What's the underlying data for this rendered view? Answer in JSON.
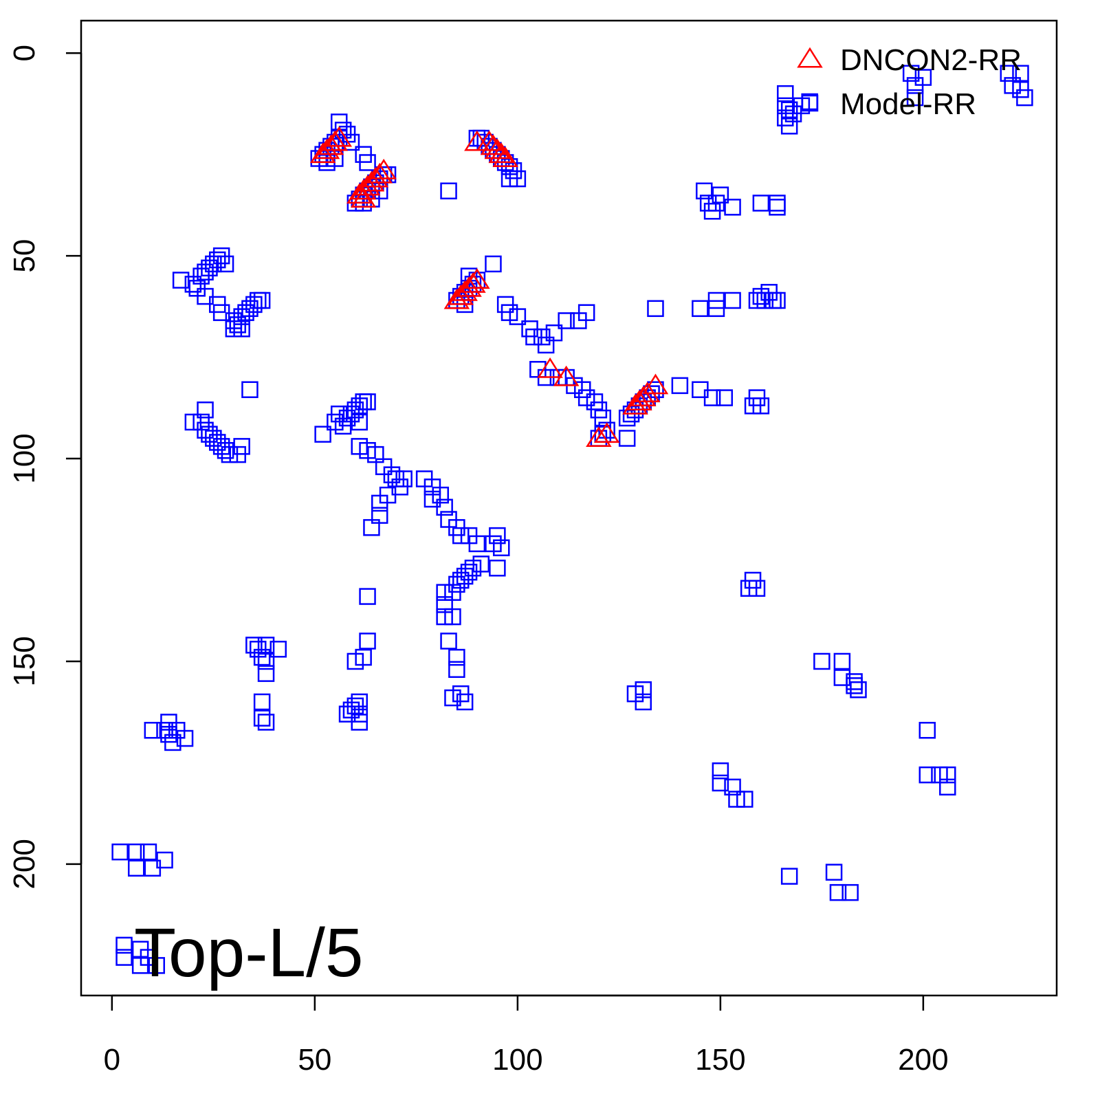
{
  "chart_data": {
    "type": "scatter",
    "annotation": "Top-L/5",
    "xlim": [
      -7.6,
      232.9
    ],
    "ylim": [
      232.4,
      -8
    ],
    "xticks": [
      0,
      50,
      100,
      150,
      200
    ],
    "yticks": [
      0,
      50,
      100,
      150,
      200
    ],
    "legend": "top-right",
    "series": [
      {
        "name": "DNCON2-RR",
        "color": "#ff0000",
        "marker": "triangle",
        "x": [
          52,
          53,
          54,
          55,
          56,
          61,
          62,
          63,
          64,
          65,
          66,
          67,
          62,
          90,
          93,
          94,
          95,
          96,
          97,
          85,
          86,
          87,
          88,
          89,
          90,
          108,
          112,
          120,
          122,
          129,
          130,
          131,
          132,
          134
        ],
        "y": [
          25,
          24,
          23,
          22,
          21,
          35,
          34,
          33,
          32,
          31,
          30,
          29,
          36,
          22,
          22,
          23,
          24,
          25,
          26,
          61,
          60,
          59,
          58,
          57,
          56,
          78,
          80,
          95,
          94,
          87,
          86,
          85,
          84,
          82
        ]
      },
      {
        "name": "Model-RR",
        "color": "#0000ff",
        "marker": "square",
        "x": [
          52,
          53,
          54,
          55,
          56,
          56,
          57,
          58,
          51,
          53,
          55,
          59,
          62,
          63,
          60,
          61,
          62,
          63,
          64,
          65,
          66,
          67,
          68,
          62,
          64,
          66,
          83,
          90,
          91,
          92,
          93,
          94,
          95,
          96,
          97,
          98,
          99,
          98,
          100,
          166,
          166,
          167,
          168,
          170,
          172,
          166,
          167,
          197,
          198,
          198,
          200,
          221,
          222,
          224,
          225,
          224,
          146,
          147,
          150,
          148,
          149,
          153,
          160,
          164,
          164,
          22,
          23,
          24,
          25,
          26,
          27,
          28,
          17,
          20,
          21,
          23,
          26,
          27,
          30,
          31,
          32,
          33,
          34,
          35,
          36,
          37,
          30,
          32,
          85,
          86,
          87,
          88,
          89,
          90,
          88,
          94,
          87,
          97,
          98,
          100,
          103,
          104,
          106,
          107,
          109,
          112,
          115,
          117,
          105,
          107,
          110,
          112,
          114,
          116,
          117,
          119,
          120,
          121,
          120,
          121,
          122,
          127,
          127,
          128,
          129,
          130,
          131,
          132,
          133,
          134,
          140,
          145,
          148,
          151,
          158,
          159,
          160,
          134,
          145,
          149,
          149,
          153,
          159,
          160,
          162,
          163,
          164,
          161,
          34,
          22,
          23,
          24,
          25,
          26,
          27,
          28,
          29,
          31,
          32,
          23,
          20,
          52,
          55,
          56,
          57,
          58,
          59,
          60,
          61,
          62,
          63,
          61,
          61,
          63,
          65,
          67,
          69,
          70,
          71,
          72,
          68,
          66,
          66,
          64,
          77,
          79,
          79,
          81,
          82,
          83,
          85,
          86,
          88,
          90,
          94,
          95,
          96,
          95,
          91,
          89,
          88,
          87,
          86,
          85,
          84,
          82,
          82,
          82,
          84,
          83,
          85,
          85,
          84,
          86,
          87,
          63,
          63,
          62,
          60,
          60,
          61,
          59,
          58,
          61,
          61,
          35,
          36,
          37,
          38,
          38,
          38,
          41,
          37,
          37,
          38,
          10,
          13,
          14,
          15,
          16,
          18,
          14,
          158,
          157,
          159,
          129,
          131,
          131,
          175,
          180,
          180,
          183,
          184,
          183,
          150,
          150,
          153,
          154,
          156,
          201,
          201,
          204,
          206,
          206,
          167,
          178,
          179,
          182,
          2,
          6,
          6,
          9,
          10,
          13,
          3,
          3,
          7,
          7,
          9,
          11
        ],
        "y": [
          25,
          24,
          23,
          22,
          21,
          17,
          19,
          20,
          26,
          27,
          26,
          22,
          25,
          27,
          37,
          36,
          35,
          34,
          33,
          32,
          31,
          30,
          30,
          37,
          36,
          34,
          34,
          21,
          21,
          22,
          23,
          24,
          25,
          26,
          27,
          28,
          29,
          31,
          31,
          10,
          13,
          14,
          15,
          13,
          12,
          16,
          18,
          5,
          8,
          11,
          6,
          5,
          8,
          9,
          11,
          5,
          34,
          37,
          35,
          39,
          37,
          38,
          37,
          37,
          38,
          55,
          54,
          53,
          52,
          51,
          50,
          52,
          56,
          57,
          58,
          60,
          62,
          64,
          66,
          67,
          65,
          64,
          63,
          62,
          61,
          61,
          68,
          68,
          61,
          60,
          59,
          58,
          57,
          56,
          55,
          52,
          62,
          62,
          64,
          65,
          68,
          70,
          70,
          72,
          69,
          66,
          66,
          64,
          78,
          80,
          80,
          80,
          82,
          83,
          85,
          86,
          88,
          90,
          95,
          94,
          93,
          95,
          90,
          89,
          88,
          87,
          86,
          85,
          84,
          83,
          82,
          83,
          85,
          85,
          87,
          85,
          87,
          63,
          63,
          63,
          61,
          61,
          61,
          60,
          59,
          61,
          61,
          61,
          83,
          91,
          93,
          94,
          95,
          96,
          97,
          98,
          99,
          99,
          97,
          88,
          91,
          94,
          91,
          89,
          92,
          90,
          89,
          88,
          87,
          86,
          86,
          91,
          97,
          98,
          99,
          102,
          104,
          105,
          107,
          105,
          109,
          111,
          114,
          117,
          105,
          107,
          110,
          109,
          112,
          115,
          117,
          119,
          119,
          121,
          121,
          119,
          122,
          127,
          126,
          127,
          128,
          129,
          130,
          131,
          133,
          133,
          136,
          139,
          139,
          145,
          149,
          152,
          159,
          158,
          160,
          134,
          145,
          149,
          150,
          161,
          160,
          162,
          163,
          163,
          165,
          146,
          147,
          149,
          146,
          150,
          153,
          147,
          160,
          164,
          165,
          167,
          167,
          168,
          170,
          167,
          169,
          165,
          130,
          132,
          132,
          158,
          157,
          160,
          150,
          150,
          154,
          155,
          157,
          156,
          177,
          180,
          181,
          184,
          184,
          167,
          178,
          178,
          178,
          181,
          203,
          202,
          207,
          207,
          197,
          197,
          201,
          197,
          201,
          199,
          220,
          223,
          221,
          225,
          223,
          225
        ]
      }
    ]
  }
}
